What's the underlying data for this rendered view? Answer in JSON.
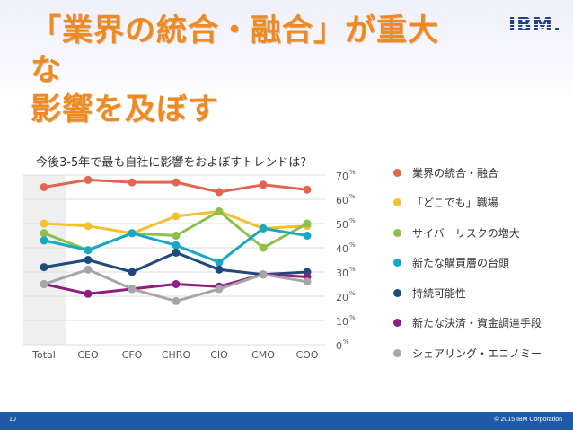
{
  "slide": {
    "title_line1": "「業界の統合・融合」が重大な",
    "title_line2": "影響を及ぼす",
    "logo": "IBM.",
    "question": "今後3-5年で最も自社に影響をおよぼすトレンドは?",
    "page_number": "10",
    "copyright": "© 2015 IBM Corporation"
  },
  "chart_data": {
    "type": "line",
    "title": "今後3-5年で最も自社に影響をおよぼすトレンドは?",
    "categories": [
      "Total",
      "CEO",
      "CFO",
      "CHRO",
      "CIO",
      "CMO",
      "COO"
    ],
    "y_ticks": [
      0,
      10,
      20,
      30,
      40,
      50,
      60,
      70
    ],
    "y_tick_unit": "%",
    "ylim": [
      0,
      70
    ],
    "y_axis_position": "right",
    "grid": true,
    "highlighted_category": "Total",
    "legend_position": "right",
    "series": [
      {
        "name": "業界の統合・融合",
        "color": "#e0664f",
        "values": [
          65,
          68,
          67,
          67,
          63,
          66,
          64
        ]
      },
      {
        "name": "「どこでも」職場",
        "color": "#f2c12e",
        "values": [
          50,
          49,
          46,
          53,
          55,
          48,
          49
        ]
      },
      {
        "name": "サイバーリスクの増大",
        "color": "#8cc04b",
        "values": [
          46,
          39,
          46,
          45,
          55,
          40,
          50
        ]
      },
      {
        "name": "新たな購買層の台頭",
        "color": "#16a9c6",
        "values": [
          43,
          39,
          46,
          41,
          34,
          48,
          45
        ]
      },
      {
        "name": "持続可能性",
        "color": "#1f4a7d",
        "values": [
          32,
          35,
          30,
          38,
          31,
          29,
          30
        ]
      },
      {
        "name": "新たな決済・資金調達手段",
        "color": "#8e1f7f",
        "values": [
          25,
          21,
          23,
          25,
          24,
          29,
          28
        ]
      },
      {
        "name": "シェアリング・エコノミー",
        "color": "#a6a6a6",
        "values": [
          25,
          31,
          23,
          18,
          23,
          29,
          26
        ]
      }
    ]
  }
}
